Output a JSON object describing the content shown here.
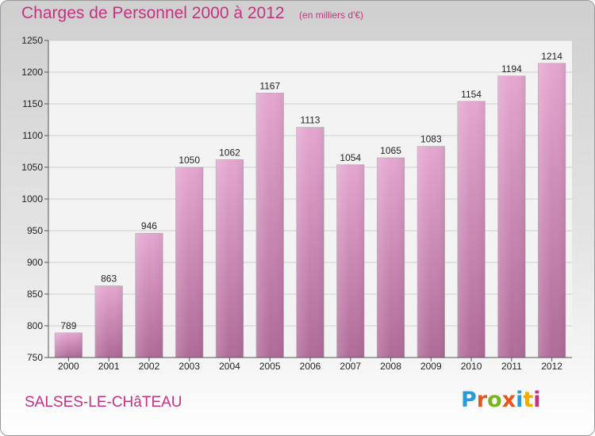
{
  "header": {
    "title": "Charges de Personnel 2000 à 2012",
    "subtitle": "(en milliers d'€)"
  },
  "footer": {
    "commune": "SALSES-LE-CHâTEAU",
    "logo_text": "Proxiti",
    "logo_colors": [
      "#2a9ad6",
      "#e8541a",
      "#7ab51d",
      "#e8541a",
      "#2a9ad6",
      "#f2a900",
      "#c7317f"
    ]
  },
  "chart_data": {
    "type": "bar",
    "categories": [
      "2000",
      "2001",
      "2002",
      "2003",
      "2004",
      "2005",
      "2006",
      "2007",
      "2008",
      "2009",
      "2010",
      "2011",
      "2012"
    ],
    "values": [
      789,
      863,
      946,
      1050,
      1062,
      1167,
      1113,
      1054,
      1065,
      1083,
      1154,
      1194,
      1214
    ],
    "title": "Charges de Personnel 2000 à 2012",
    "subtitle": "(en milliers d'€)",
    "xlabel": "",
    "ylabel": "",
    "ylim": [
      750,
      1250
    ],
    "yticks": [
      750,
      800,
      850,
      900,
      950,
      1000,
      1050,
      1100,
      1150,
      1200,
      1250
    ],
    "grid": true,
    "bar_color_top": "#e4a6d0",
    "bar_color_bottom": "#b06a98"
  }
}
